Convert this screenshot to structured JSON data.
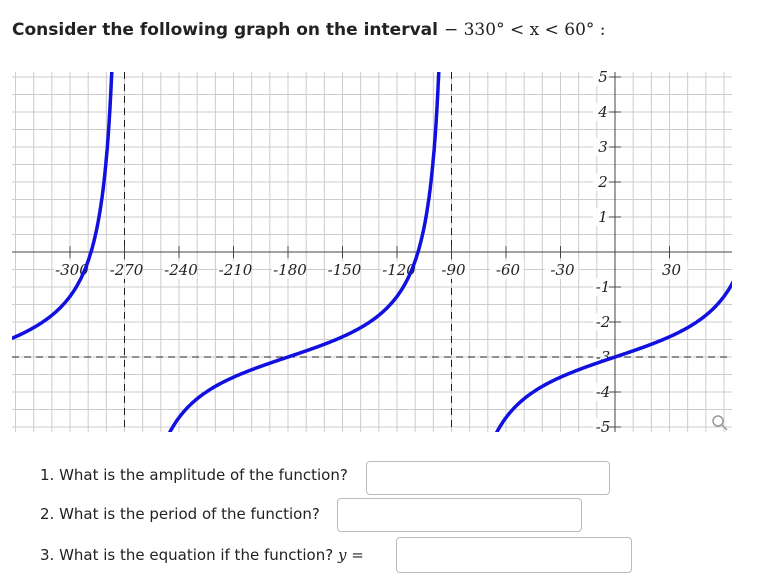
{
  "header": {
    "prompt": "Consider the following graph on the interval",
    "interval": "− 330°  < x < 60° :"
  },
  "graph": {
    "x_ticks": [
      -300,
      -270,
      -240,
      -210,
      -180,
      -150,
      -120,
      -90,
      -60,
      -30,
      30
    ],
    "y_ticks": [
      5,
      4,
      3,
      2,
      1,
      -1,
      -2,
      -3,
      -4,
      -5
    ]
  },
  "questions": [
    {
      "text": "1. What is the amplitude of the function?"
    },
    {
      "text": "2. What is the period of the function?"
    },
    {
      "text": "3. What is the equation if the function?",
      "math": "y ="
    }
  ]
}
